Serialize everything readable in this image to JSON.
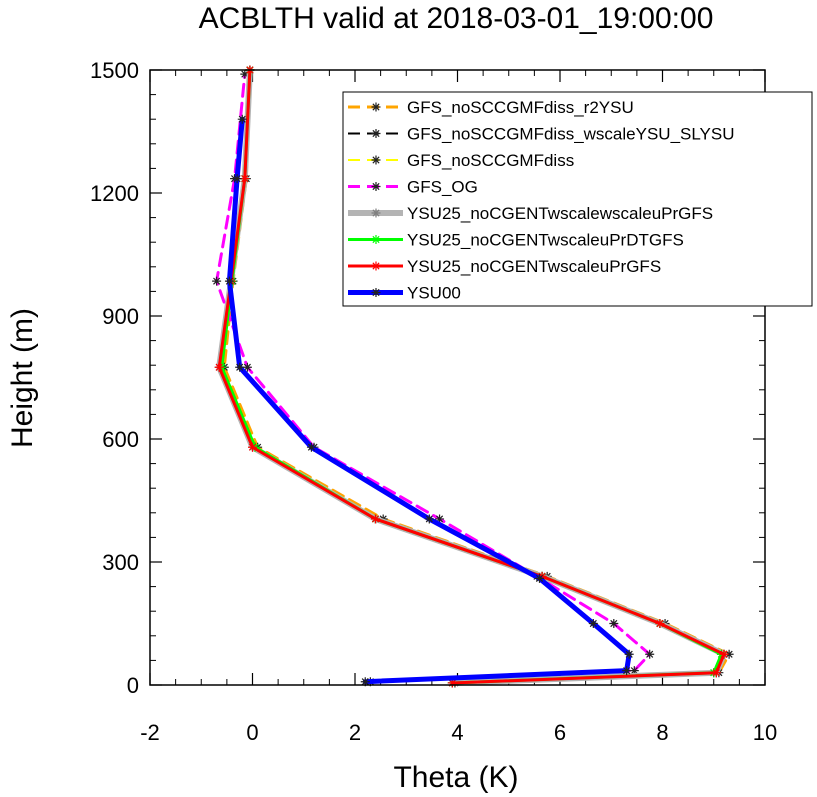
{
  "chart_data": {
    "type": "line",
    "title": "ACBLTH valid at 2018-03-01_19:00:00",
    "xlabel": "Theta (K)",
    "ylabel": "Height (m)",
    "xlim": [
      -2,
      10
    ],
    "ylim": [
      0,
      1500
    ],
    "xticks": [
      -2,
      0,
      2,
      4,
      6,
      8,
      10
    ],
    "xtick_labels": [
      "-2",
      "0",
      "2",
      "4",
      "6",
      "8",
      "10"
    ],
    "yticks": [
      0,
      300,
      600,
      900,
      1200,
      1500
    ],
    "ytick_labels": [
      "0",
      "300",
      "600",
      "900",
      "1200",
      "1500"
    ],
    "grid": false,
    "legend_position": "top-right",
    "series": [
      {
        "name": "GFS_noSCCGMFdiss_r2YSU",
        "color": "#ffa500",
        "dash": true,
        "width": 3,
        "x": [
          3.95,
          9.1,
          9.3,
          8.05,
          5.75,
          2.55,
          0.1,
          -0.55,
          -0.38,
          -0.12,
          -0.05
        ],
        "y": [
          5,
          30,
          75,
          150,
          265,
          405,
          580,
          775,
          985,
          1235,
          1500
        ]
      },
      {
        "name": "GFS_noSCCGMFdiss_wscaleYSU_SLYSU",
        "color": "#000000",
        "dash": true,
        "width": 2,
        "x": [
          3.9,
          9.05,
          9.2,
          7.95,
          5.65,
          2.4,
          0.05,
          -0.6,
          -0.4,
          -0.15,
          -0.05
        ],
        "y": [
          5,
          30,
          75,
          150,
          265,
          405,
          580,
          775,
          985,
          1235,
          1500
        ]
      },
      {
        "name": "GFS_noSCCGMFdiss",
        "color": "#ffff00",
        "dash": true,
        "width": 2,
        "x": [
          3.9,
          9.0,
          9.15,
          7.95,
          5.65,
          2.4,
          0.05,
          -0.6,
          -0.4,
          -0.15,
          -0.05
        ],
        "y": [
          5,
          30,
          75,
          150,
          265,
          405,
          580,
          775,
          985,
          1235,
          1500
        ]
      },
      {
        "name": "GFS_OG",
        "color": "#ff00ff",
        "dash": true,
        "width": 3,
        "x": [
          2.3,
          7.45,
          7.75,
          7.05,
          5.55,
          3.65,
          1.2,
          -0.1,
          -0.7,
          -0.35,
          -0.15
        ],
        "y": [
          8,
          35,
          75,
          150,
          265,
          405,
          580,
          775,
          985,
          1235,
          1490
        ]
      },
      {
        "name": "YSU25_noCGENTwscalewscaleuPrGFS",
        "color": "#b4b4b4",
        "dash": false,
        "width": 6,
        "x": [
          3.9,
          9.05,
          9.2,
          7.95,
          5.65,
          2.4,
          0.0,
          -0.65,
          -0.42,
          -0.15,
          -0.05
        ],
        "y": [
          5,
          30,
          75,
          150,
          265,
          405,
          580,
          775,
          985,
          1235,
          1500
        ]
      },
      {
        "name": "YSU25_noCGENTwscaleuPrDTGFS",
        "color": "#00ff00",
        "dash": false,
        "width": 3,
        "x": [
          3.9,
          9.0,
          9.15,
          7.95,
          5.65,
          2.4,
          0.05,
          -0.6,
          -0.4,
          -0.15,
          -0.05
        ],
        "y": [
          5,
          30,
          75,
          150,
          265,
          405,
          580,
          775,
          985,
          1235,
          1500
        ]
      },
      {
        "name": "YSU25_noCGENTwscaleuPrGFS",
        "color": "#ff0000",
        "dash": false,
        "width": 3,
        "x": [
          3.9,
          9.05,
          9.2,
          7.95,
          5.65,
          2.4,
          0.0,
          -0.65,
          -0.42,
          -0.15,
          -0.05
        ],
        "y": [
          5,
          30,
          75,
          150,
          265,
          405,
          580,
          775,
          985,
          1235,
          1500
        ]
      },
      {
        "name": "YSU00",
        "color": "#0000ff",
        "dash": false,
        "width": 5,
        "x": [
          2.2,
          7.3,
          7.35,
          6.65,
          5.6,
          3.45,
          1.15,
          -0.25,
          -0.45,
          -0.3,
          -0.2
        ],
        "y": [
          8,
          35,
          75,
          150,
          260,
          405,
          580,
          775,
          985,
          1235,
          1380
        ]
      }
    ]
  }
}
